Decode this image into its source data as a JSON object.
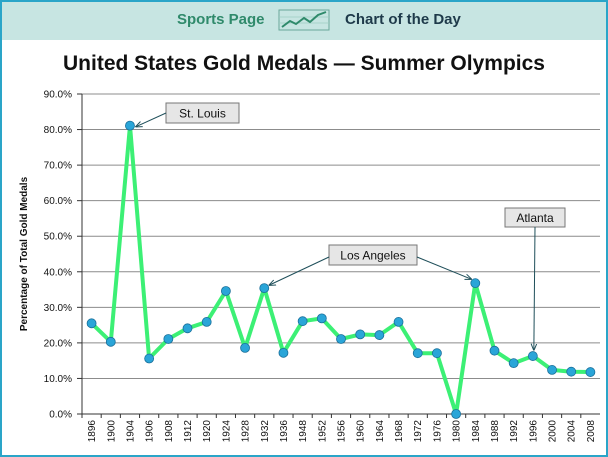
{
  "banner": {
    "left_label": "Sports Page",
    "right_label": "Chart of the Day",
    "logo_icon": "trend-chart-icon"
  },
  "colors": {
    "banner_bg": "#c7e5e2",
    "border": "#2aa5c8",
    "line": "#3cf075",
    "marker": "#2aa5d8",
    "grid": "#8c8c8c"
  },
  "chart_data": {
    "type": "line",
    "title": "United States Gold Medals — Summer Olympics",
    "xlabel": "",
    "ylabel": "Percentage of Total Gold Medals",
    "ylim": [
      0,
      90
    ],
    "yticks": [
      "0.0%",
      "10.0%",
      "20.0%",
      "30.0%",
      "40.0%",
      "50.0%",
      "60.0%",
      "70.0%",
      "80.0%",
      "90.0%"
    ],
    "grid": true,
    "categories": [
      "1896",
      "1900",
      "1904",
      "1906",
      "1908",
      "1912",
      "1920",
      "1924",
      "1928",
      "1932",
      "1936",
      "1948",
      "1952",
      "1956",
      "1960",
      "1964",
      "1968",
      "1972",
      "1976",
      "1980",
      "1984",
      "1988",
      "1992",
      "1996",
      "2000",
      "2004",
      "2008"
    ],
    "series": [
      {
        "name": "United States",
        "values": [
          25.5,
          20.3,
          81.1,
          15.6,
          21.1,
          24.1,
          25.9,
          34.6,
          18.6,
          35.4,
          17.2,
          26.1,
          26.9,
          21.1,
          22.4,
          22.2,
          25.9,
          17.1,
          17.1,
          0.0,
          36.8,
          17.8,
          14.3,
          16.3,
          12.4,
          11.9,
          11.8
        ]
      }
    ],
    "annotations": [
      {
        "label": "St. Louis",
        "target": "1904"
      },
      {
        "label": "Los Angeles",
        "targets": [
          "1932",
          "1984"
        ]
      },
      {
        "label": "Atlanta",
        "target": "1996"
      }
    ]
  }
}
